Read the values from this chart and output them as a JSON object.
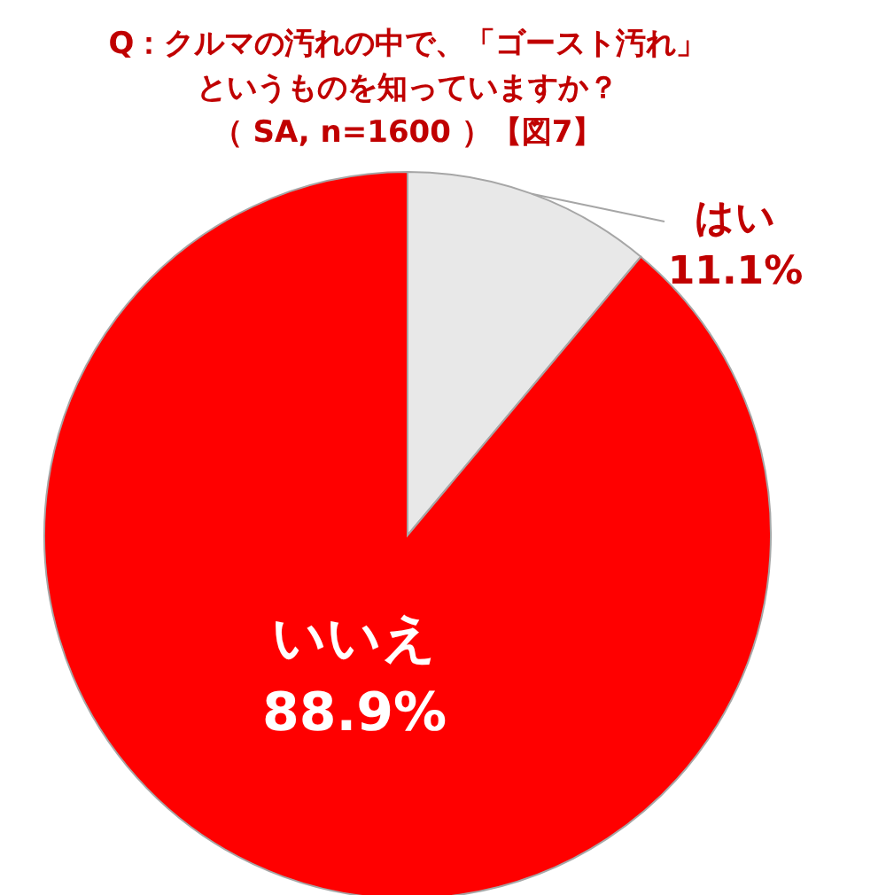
{
  "chart_data": {
    "type": "pie",
    "title": "Q：クルマの汚れの中で、「ゴースト汚れ」というものを知っていますか？",
    "subtitle": "（ SA, n=1600 ）【図7】",
    "categories": [
      "はい",
      "いいえ"
    ],
    "values": [
      11.1,
      88.9
    ],
    "value_labels": [
      "11.1%",
      "88.9%"
    ],
    "colors": [
      "#e8e8e8",
      "#ff0000"
    ]
  }
}
